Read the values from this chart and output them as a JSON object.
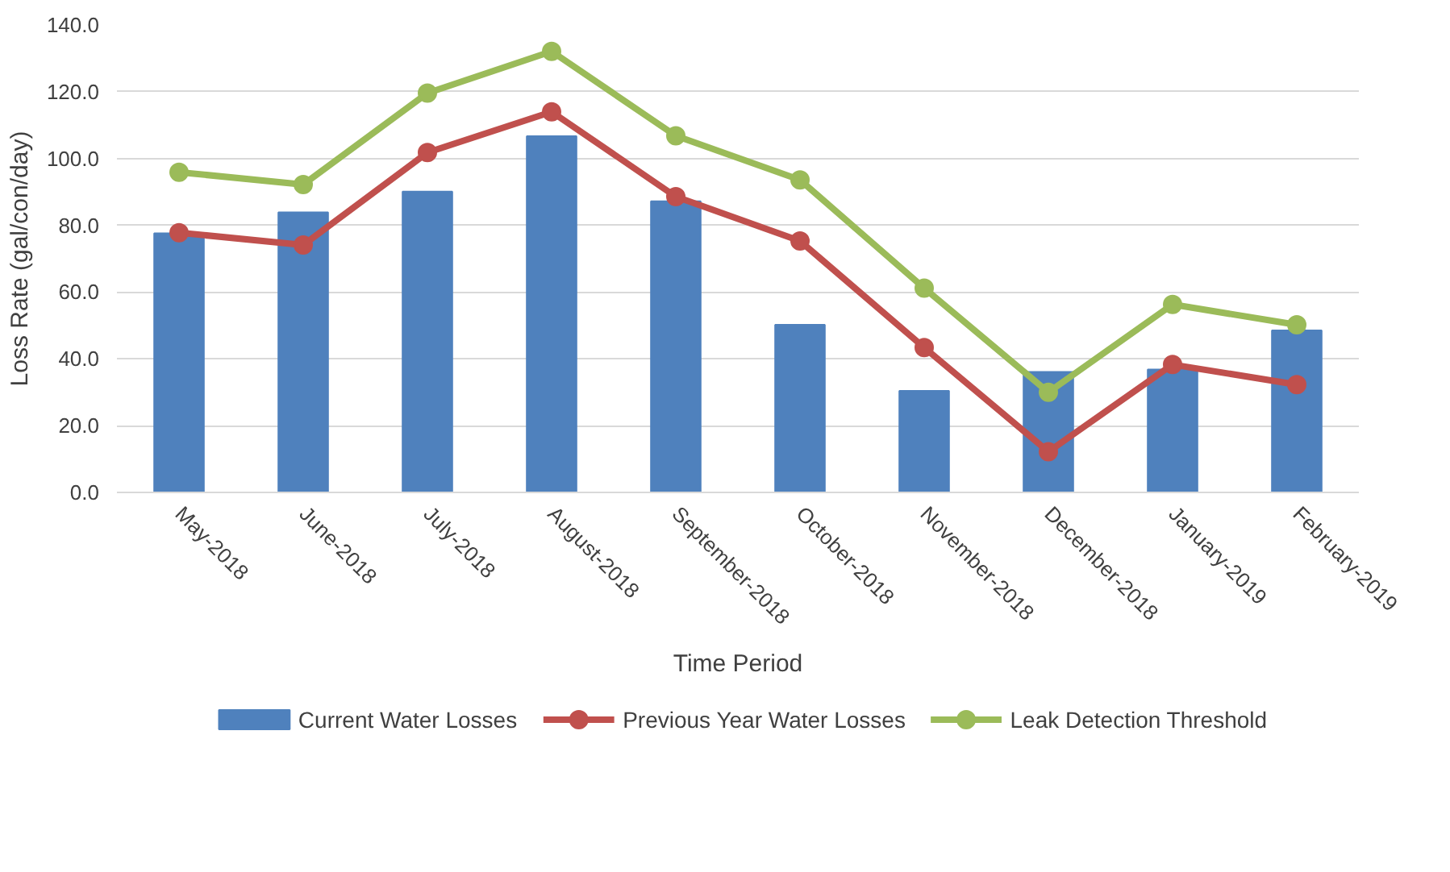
{
  "chart_data": {
    "type": "bar",
    "categories": [
      "May-2018",
      "June-2018",
      "July-2018",
      "August-2018",
      "September-2018",
      "October-2018",
      "November-2018",
      "December-2018",
      "January-2019",
      "February-2019"
    ],
    "series": [
      {
        "name": "Current Water Losses",
        "color": "#4f81bd",
        "values": [
          77.6,
          83.9,
          90.1,
          106.7,
          87.2,
          50.2,
          30.4,
          36.1,
          36.8,
          48.5
        ]
      },
      {
        "name": "Previous Year Water Losses",
        "type": "line",
        "color": "#c0504d",
        "marker": "circle",
        "values": [
          77.8,
          74.1,
          101.8,
          114.0,
          88.6,
          75.3,
          43.4,
          12.2,
          38.3,
          32.3
        ]
      },
      {
        "name": "Leak Detection Threshold",
        "type": "line",
        "color": "#9bbb59",
        "marker": "circle",
        "values": [
          95.9,
          92.2,
          119.6,
          132.1,
          106.8,
          93.6,
          61.2,
          30.0,
          56.3,
          50.2
        ]
      }
    ],
    "xlabel": "Time Period",
    "ylabel": "Loss Rate (gal/con/day)",
    "ylim": [
      0,
      140
    ],
    "yticks": [
      {
        "value": 0,
        "label": "0.0"
      },
      {
        "value": 20,
        "label": "20.0"
      },
      {
        "value": 40,
        "label": "40.0"
      },
      {
        "value": 60,
        "label": "60.0"
      },
      {
        "value": 80,
        "label": "80.0"
      },
      {
        "value": 100,
        "label": "100.0"
      },
      {
        "value": 120,
        "label": "120.0"
      },
      {
        "value": 140,
        "label": "140.0"
      }
    ],
    "grid": "y",
    "legend": "bottom"
  }
}
